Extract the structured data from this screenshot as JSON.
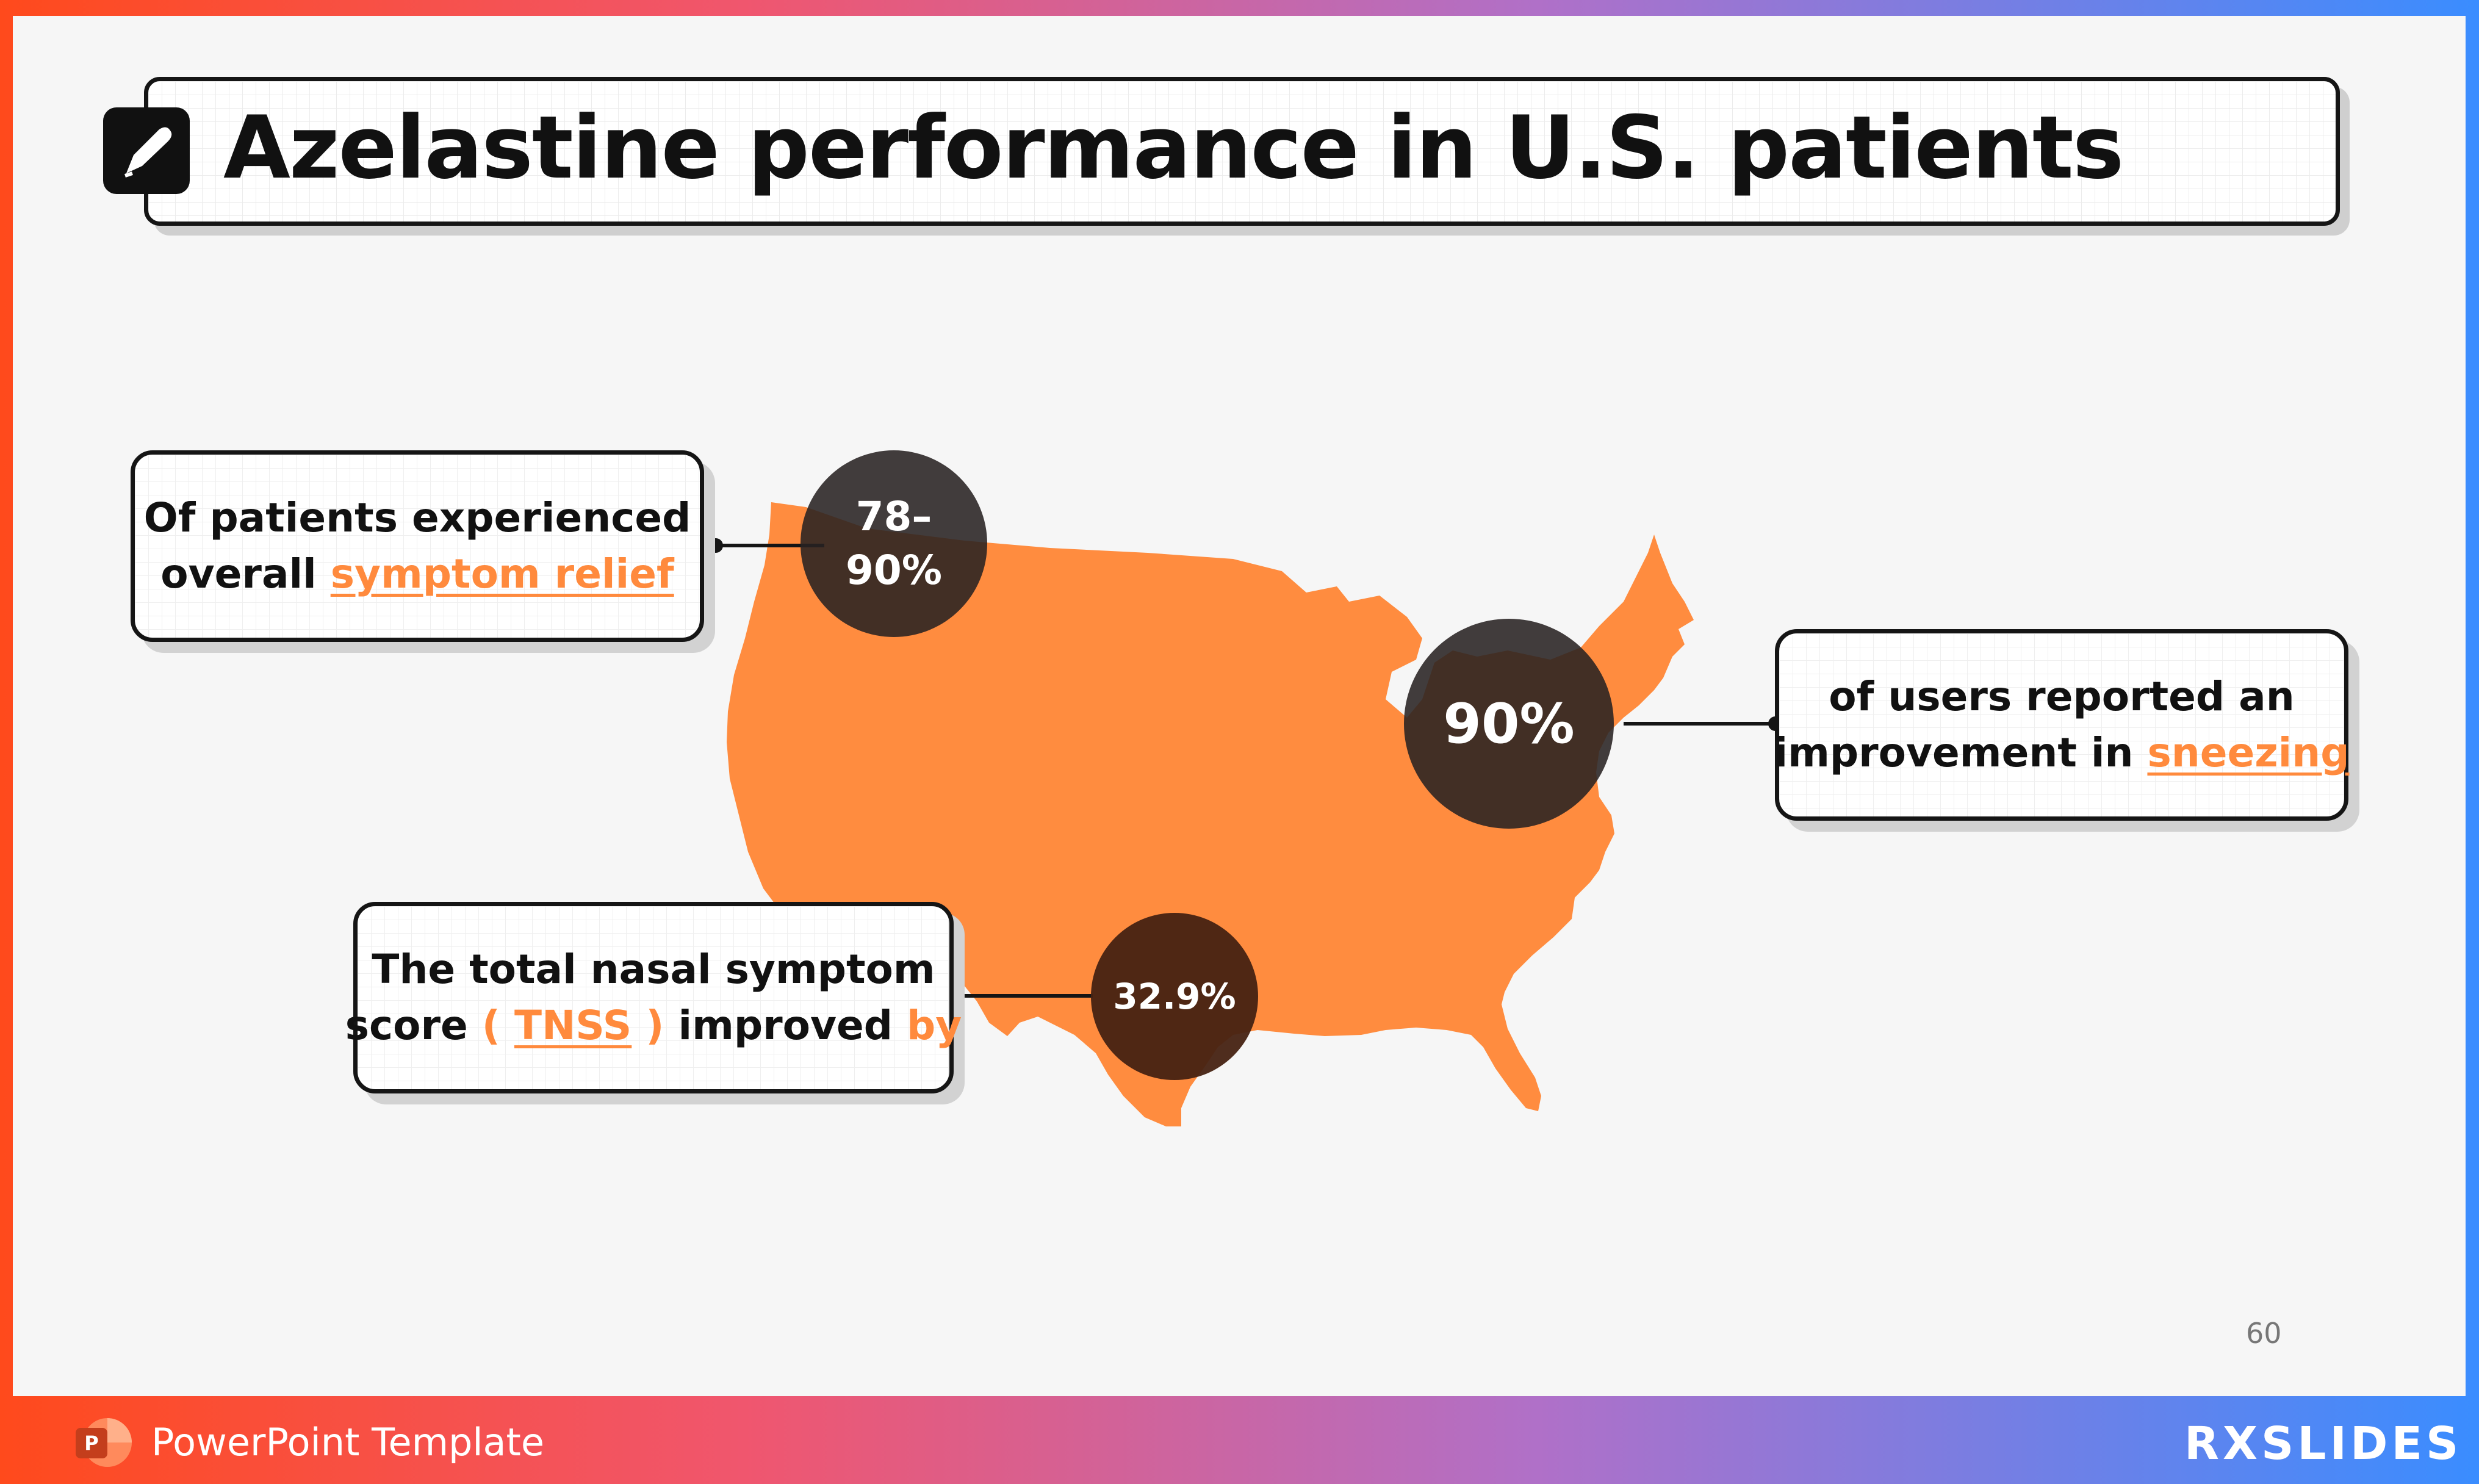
{
  "title": "Azelastine performance in U.S. patients",
  "title_icon": "pen-icon",
  "callouts": {
    "relief": {
      "line1": "Of patients experienced",
      "line2_prefix": "overall ",
      "highlight": "symptom relief"
    },
    "sneezing": {
      "line1": "of users reported an",
      "line2_prefix": "improvement in ",
      "highlight": "sneezing"
    },
    "tnss": {
      "line1": "The total nasal symptom",
      "line2_prefix": "score ",
      "open_paren": "( ",
      "highlight": "TNSS",
      "close_paren": " )",
      "mid": " improved ",
      "by": "by"
    }
  },
  "stats": {
    "relief": {
      "line1": "78–",
      "line2": "90%"
    },
    "sneezing": "90%",
    "tnss": "32.9%"
  },
  "colors": {
    "map": "#ff8c3f",
    "accent": "#ff8a3d",
    "badge": "#3a2a22"
  },
  "page_number": "60",
  "footer": {
    "template_label": "PowerPoint Template",
    "brand": "RXSLIDES"
  }
}
